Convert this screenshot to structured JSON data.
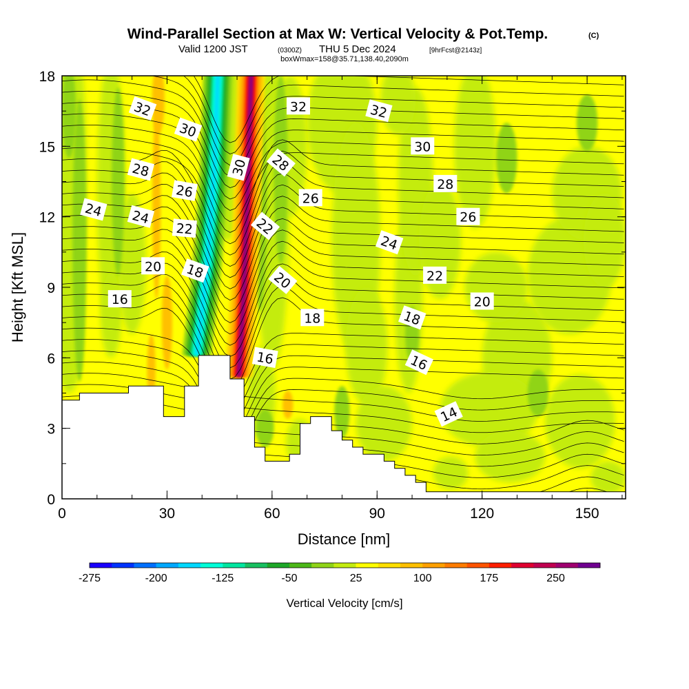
{
  "chart_data": {
    "type": "heatmap",
    "title": "Wind-Parallel Section at Max W: Vertical Velocity & Pot.Temp.",
    "title_copyright": "(C)",
    "subtitle_valid_prefix": "Valid 1200 JST",
    "subtitle_valid_utc": "(0300Z)",
    "subtitle_valid_date": "THU 5 Dec 2024",
    "subtitle_fcst": "[9hrFcst@2143z]",
    "subtitle_box": "boxWmax=158@35.71,138.40,2090m",
    "xlabel": "Distance [nm]",
    "ylabel": "Height [Kft MSL]",
    "xlim": [
      0,
      161
    ],
    "ylim": [
      0,
      18
    ],
    "x_ticks": [
      "0",
      "30",
      "60",
      "90",
      "120",
      "150"
    ],
    "x_tick_values": [
      0,
      30,
      60,
      90,
      120,
      150
    ],
    "x_minor_step": 10,
    "y_ticks": [
      "0",
      "3",
      "6",
      "9",
      "12",
      "15",
      "18"
    ],
    "y_tick_values": [
      0,
      3,
      6,
      9,
      12,
      15,
      18
    ],
    "y_minor_step": 1.5,
    "colorbar": {
      "title": "Vertical Velocity [cm/s]",
      "levels": [
        -275,
        -250,
        -225,
        -200,
        -175,
        -150,
        -125,
        -100,
        -75,
        -50,
        -25,
        0,
        25,
        50,
        75,
        100,
        125,
        150,
        175,
        200,
        225,
        250,
        275,
        300
      ],
      "tick_labels": [
        "-275",
        "-200",
        "-125",
        "-50",
        "25",
        "100",
        "175",
        "250"
      ],
      "tick_values": [
        -275,
        -200,
        -125,
        -50,
        25,
        100,
        175,
        250
      ],
      "colors": [
        "#1a00ff",
        "#0033ff",
        "#0070ff",
        "#00a8ff",
        "#00d8ff",
        "#00ffd8",
        "#00e6a0",
        "#18c060",
        "#1ea828",
        "#4cb818",
        "#90d418",
        "#c4ec10",
        "#ffff00",
        "#ffe000",
        "#ffc000",
        "#ffa000",
        "#ff7c00",
        "#ff5400",
        "#ff1e00",
        "#e00030",
        "#c00050",
        "#a00070",
        "#700090"
      ]
    },
    "terrain_profile": [
      [
        0,
        4.2
      ],
      [
        5,
        4.2
      ],
      [
        5,
        4.5
      ],
      [
        19,
        4.5
      ],
      [
        19,
        4.8
      ],
      [
        29,
        4.8
      ],
      [
        29,
        3.5
      ],
      [
        35,
        3.5
      ],
      [
        35,
        4.8
      ],
      [
        39,
        4.8
      ],
      [
        39,
        6.1
      ],
      [
        48,
        6.1
      ],
      [
        48,
        5.1
      ],
      [
        52,
        5.1
      ],
      [
        52,
        3.5
      ],
      [
        55,
        3.5
      ],
      [
        55,
        2.2
      ],
      [
        58,
        2.2
      ],
      [
        58,
        1.6
      ],
      [
        65,
        1.6
      ],
      [
        65,
        1.9
      ],
      [
        68,
        1.9
      ],
      [
        68,
        3.2
      ],
      [
        71,
        3.2
      ],
      [
        71,
        3.5
      ],
      [
        77,
        3.5
      ],
      [
        77,
        2.9
      ],
      [
        80,
        2.9
      ],
      [
        80,
        2.5
      ],
      [
        83,
        2.5
      ],
      [
        83,
        2.2
      ],
      [
        86,
        2.2
      ],
      [
        86,
        1.9
      ],
      [
        92,
        1.9
      ],
      [
        92,
        1.6
      ],
      [
        95,
        1.6
      ],
      [
        95,
        1.3
      ],
      [
        98,
        1.3
      ],
      [
        98,
        1.0
      ],
      [
        101,
        1.0
      ],
      [
        101,
        0.7
      ],
      [
        104,
        0.7
      ],
      [
        104,
        0.3
      ],
      [
        161,
        0.3
      ]
    ],
    "wband_axis": [
      [
        38.5,
        6.1
      ],
      [
        41.5,
        10
      ],
      [
        43.5,
        14
      ],
      [
        44.5,
        18
      ]
    ],
    "wband_up_axis": [
      [
        50.5,
        5.2
      ],
      [
        52,
        9
      ],
      [
        53,
        13
      ],
      [
        54,
        18
      ]
    ],
    "contour_labels": [
      {
        "text": "32",
        "x": 23,
        "y": 16.6,
        "angle": 20
      },
      {
        "text": "30",
        "x": 36,
        "y": 15.7,
        "angle": 20
      },
      {
        "text": "28",
        "x": 22.5,
        "y": 14.0,
        "angle": 15
      },
      {
        "text": "26",
        "x": 35,
        "y": 13.1,
        "angle": 10
      },
      {
        "text": "24",
        "x": 9,
        "y": 12.3,
        "angle": 15
      },
      {
        "text": "24",
        "x": 22.5,
        "y": 12.0,
        "angle": 15
      },
      {
        "text": "22",
        "x": 35,
        "y": 11.5,
        "angle": 5
      },
      {
        "text": "20",
        "x": 26,
        "y": 9.9,
        "angle": 0
      },
      {
        "text": "18",
        "x": 38,
        "y": 9.7,
        "angle": 20
      },
      {
        "text": "16",
        "x": 16.5,
        "y": 8.5,
        "angle": 0
      },
      {
        "text": "30",
        "x": 50.5,
        "y": 14.1,
        "angle": -75
      },
      {
        "text": "28",
        "x": 62.5,
        "y": 14.3,
        "angle": 40
      },
      {
        "text": "22",
        "x": 58,
        "y": 11.6,
        "angle": 40
      },
      {
        "text": "20",
        "x": 63,
        "y": 9.3,
        "angle": 40
      },
      {
        "text": "16",
        "x": 58,
        "y": 6.0,
        "angle": 10
      },
      {
        "text": "32",
        "x": 67.5,
        "y": 16.7,
        "angle": 0
      },
      {
        "text": "32",
        "x": 90.5,
        "y": 16.5,
        "angle": 15
      },
      {
        "text": "30",
        "x": 103,
        "y": 15.0,
        "angle": 0
      },
      {
        "text": "26",
        "x": 71,
        "y": 12.8,
        "angle": 0
      },
      {
        "text": "28",
        "x": 109.5,
        "y": 13.4,
        "angle": 0
      },
      {
        "text": "26",
        "x": 116,
        "y": 12.0,
        "angle": 0
      },
      {
        "text": "24",
        "x": 93.5,
        "y": 10.9,
        "angle": 20
      },
      {
        "text": "22",
        "x": 106.5,
        "y": 9.5,
        "angle": 0
      },
      {
        "text": "20",
        "x": 120,
        "y": 8.4,
        "angle": 0
      },
      {
        "text": "18",
        "x": 71.5,
        "y": 7.7,
        "angle": 0
      },
      {
        "text": "18",
        "x": 100,
        "y": 7.7,
        "angle": 20
      },
      {
        "text": "16",
        "x": 102,
        "y": 5.8,
        "angle": 25
      },
      {
        "text": "14",
        "x": 110.5,
        "y": 3.6,
        "angle": -25
      }
    ]
  }
}
